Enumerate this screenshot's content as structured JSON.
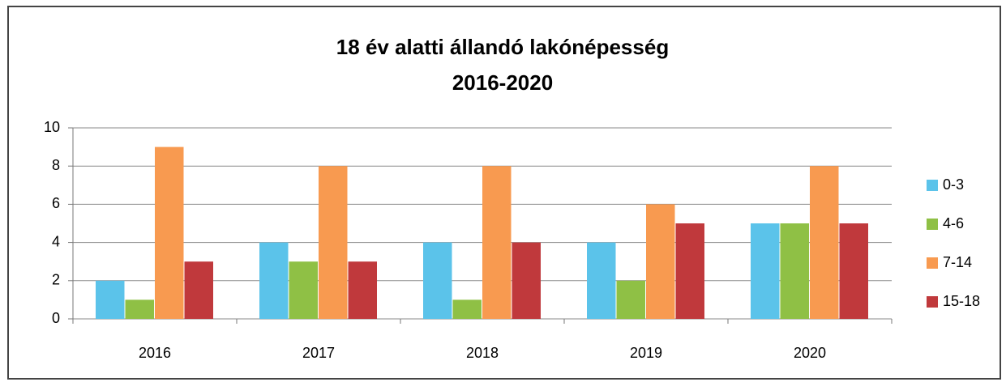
{
  "chart_data": {
    "type": "bar",
    "title": "18 év alatti állandó lakónépesség",
    "subtitle": "2016-2020",
    "categories": [
      "2016",
      "2017",
      "2018",
      "2019",
      "2020"
    ],
    "series": [
      {
        "name": "0-3",
        "color": "#5bc3ea",
        "values": [
          2,
          4,
          4,
          4,
          5
        ]
      },
      {
        "name": "4-6",
        "color": "#8fc045",
        "values": [
          1,
          3,
          1,
          2,
          5
        ]
      },
      {
        "name": "7-14",
        "color": "#f89a50",
        "values": [
          9,
          8,
          8,
          6,
          8
        ]
      },
      {
        "name": "15-18",
        "color": "#c0393c",
        "values": [
          3,
          3,
          4,
          5,
          5
        ]
      }
    ],
    "ylim": [
      0,
      10
    ],
    "yticks": [
      0,
      2,
      4,
      6,
      8,
      10
    ],
    "grid": true,
    "legend": "right"
  }
}
